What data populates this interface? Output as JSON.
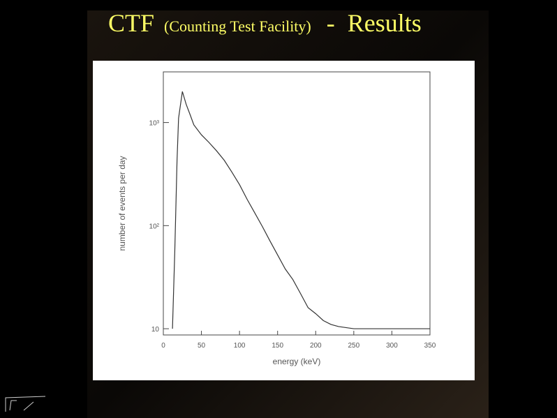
{
  "slide": {
    "title_parts": [
      "CTF",
      "(Counting Test Facility)",
      "-  Results"
    ]
  },
  "chart_data": {
    "type": "line",
    "xlabel": "energy (keV)",
    "ylabel": "number of events per day",
    "x": [
      12,
      15,
      18,
      20,
      25,
      30,
      35,
      40,
      50,
      60,
      70,
      80,
      90,
      100,
      110,
      120,
      130,
      140,
      150,
      160,
      170,
      180,
      190,
      200,
      210,
      220,
      230,
      250,
      270,
      300,
      320,
      350
    ],
    "series": [
      {
        "color": "#333333",
        "values": [
          10,
          55,
          430,
          1100,
          2000,
          1500,
          1200,
          950,
          760,
          640,
          530,
          430,
          330,
          250,
          180,
          133,
          98,
          71,
          52,
          38,
          30,
          22,
          16,
          14,
          12,
          11,
          10.5,
          10,
          10,
          10,
          10,
          10
        ]
      }
    ],
    "xlim": [
      0,
      350
    ],
    "xticks": [
      0,
      50,
      100,
      150,
      200,
      250,
      300,
      350
    ],
    "ylim": [
      8.7,
      3100
    ],
    "ylog": true,
    "yticks": [
      10,
      {
        "value": 100,
        "label": "10²"
      },
      {
        "value": 1000,
        "label": "10³"
      }
    ]
  }
}
